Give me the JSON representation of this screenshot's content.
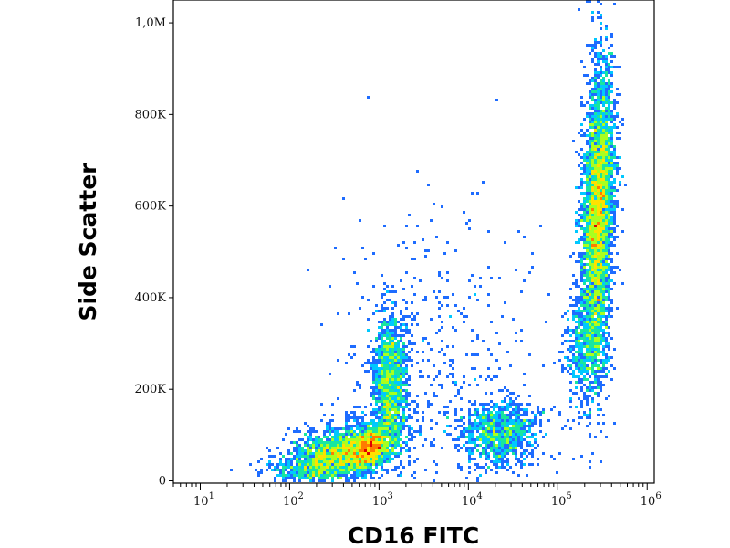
{
  "chart_data": {
    "type": "scatter",
    "title": "",
    "xlabel": "CD16 FITC",
    "ylabel": "Side Scatter",
    "x_scale": "log",
    "xlim": [
      5,
      1200000
    ],
    "ylim": [
      -5000,
      1050000
    ],
    "x_ticks": [
      {
        "base": "10",
        "exp": "1",
        "value": 10
      },
      {
        "base": "10",
        "exp": "2",
        "value": 100
      },
      {
        "base": "10",
        "exp": "3",
        "value": 1000
      },
      {
        "base": "10",
        "exp": "4",
        "value": 10000
      },
      {
        "base": "10",
        "exp": "5",
        "value": 100000
      },
      {
        "base": "10",
        "exp": "6",
        "value": 1000000
      }
    ],
    "y_ticks": [
      {
        "label": "0",
        "value": 0
      },
      {
        "label": "200K",
        "value": 200000
      },
      {
        "label": "400K",
        "value": 400000
      },
      {
        "label": "600K",
        "value": 600000
      },
      {
        "label": "800K",
        "value": 800000
      },
      {
        "label": "1,0M",
        "value": 1000000
      }
    ],
    "grid": false,
    "legend": "none",
    "colormap": [
      "#0000b0",
      "#1e6cff",
      "#00c8ff",
      "#18e6a0",
      "#a8ff20",
      "#ffe000",
      "#ff7a00",
      "#e00000"
    ],
    "populations": [
      {
        "x_log10_center": 2.55,
        "y_center": 55000,
        "x_log10_sd": 0.33,
        "y_sd": 30000,
        "tilt": 0.55,
        "count": 2600
      },
      {
        "x_log10_center": 2.9,
        "y_center": 70000,
        "x_log10_sd": 0.1,
        "y_sd": 20000,
        "tilt": 0.3,
        "count": 700
      },
      {
        "x_log10_center": 3.12,
        "y_center": 210000,
        "x_log10_sd": 0.1,
        "y_sd": 75000,
        "tilt": 0.0,
        "count": 1400
      },
      {
        "x_log10_center": 4.35,
        "y_center": 105000,
        "x_log10_sd": 0.22,
        "y_sd": 38000,
        "tilt": 0.1,
        "count": 1000
      },
      {
        "x_log10_center": 5.45,
        "y_center": 580000,
        "x_log10_sd": 0.09,
        "y_sd": 160000,
        "tilt": 0.25,
        "count": 4200
      },
      {
        "x_log10_center": 5.3,
        "y_center": 300000,
        "x_log10_sd": 0.12,
        "y_sd": 60000,
        "tilt": 0.0,
        "count": 500
      },
      {
        "x_log10_center": 3.6,
        "y_center": 250000,
        "x_log10_sd": 0.55,
        "y_sd": 180000,
        "tilt": 0.0,
        "count": 450
      }
    ]
  }
}
